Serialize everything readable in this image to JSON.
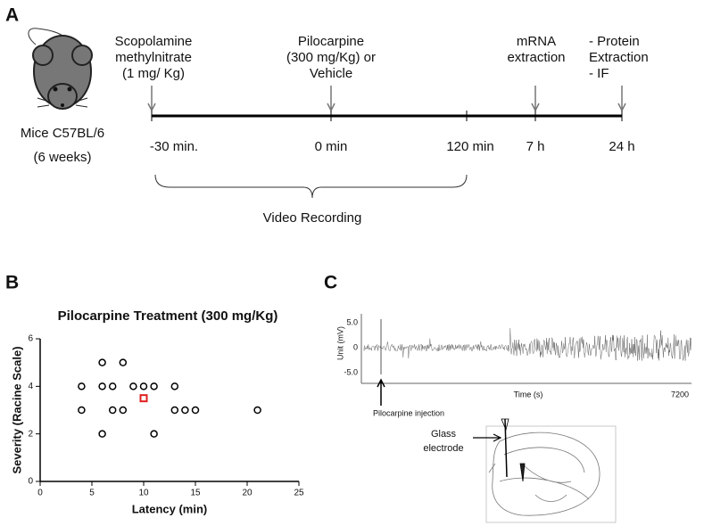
{
  "panel_a": {
    "letter": "A",
    "subject": [
      "Mice C57BL/6",
      "(6 weeks)"
    ],
    "events": [
      {
        "lines": [
          "Scopolamine",
          "methylnitrate",
          "(1 mg/ Kg)"
        ],
        "align": "middle"
      },
      {
        "lines": [
          "Pilocarpine",
          "(300 mg/Kg) or",
          "Vehicle"
        ],
        "align": "middle"
      },
      {
        "lines": [
          "mRNA",
          "extraction"
        ],
        "align": "middle"
      },
      {
        "lines": [
          "- Protein",
          "Extraction",
          "- IF"
        ],
        "align": "start"
      }
    ],
    "times": [
      "-30 min.",
      "0 min",
      "120 min",
      "7 h",
      "24 h"
    ],
    "brace_label": "Video Recording"
  },
  "chart_data": {
    "type": "scatter",
    "letter": "B",
    "title": "Pilocarpine Treatment (300 mg/Kg)",
    "xlabel": "Latency (min)",
    "ylabel": "Severity (Racine Scale)",
    "series": [
      {
        "color": "#000000",
        "marker": "circle",
        "x": [
          4,
          4,
          6,
          6,
          6,
          7,
          7,
          8,
          8,
          9,
          10,
          11,
          11,
          13,
          13,
          14,
          15,
          21
        ],
        "values": [
          4,
          3,
          5,
          4,
          2,
          4,
          3,
          5,
          3,
          4,
          4,
          4,
          2,
          4,
          3,
          3,
          3,
          3
        ]
      },
      {
        "color": "#e02020",
        "marker": "square",
        "x": [
          10
        ],
        "values": [
          3.5
        ]
      }
    ],
    "xlim": [
      0,
      25
    ],
    "xticks": [
      0,
      5,
      10,
      15,
      20,
      25
    ],
    "ylim": [
      0,
      6
    ],
    "yticks": [
      0,
      2,
      4,
      6
    ]
  },
  "panel_c": {
    "letter": "C",
    "y_labels": [
      "5.0",
      "0",
      "-5.0"
    ],
    "y_title": "Unit (mV)",
    "x_title": "Time (s)",
    "x_end": "7200",
    "injection": "Pilocarpine injection",
    "electrode": [
      "Glass",
      "electrode"
    ]
  }
}
